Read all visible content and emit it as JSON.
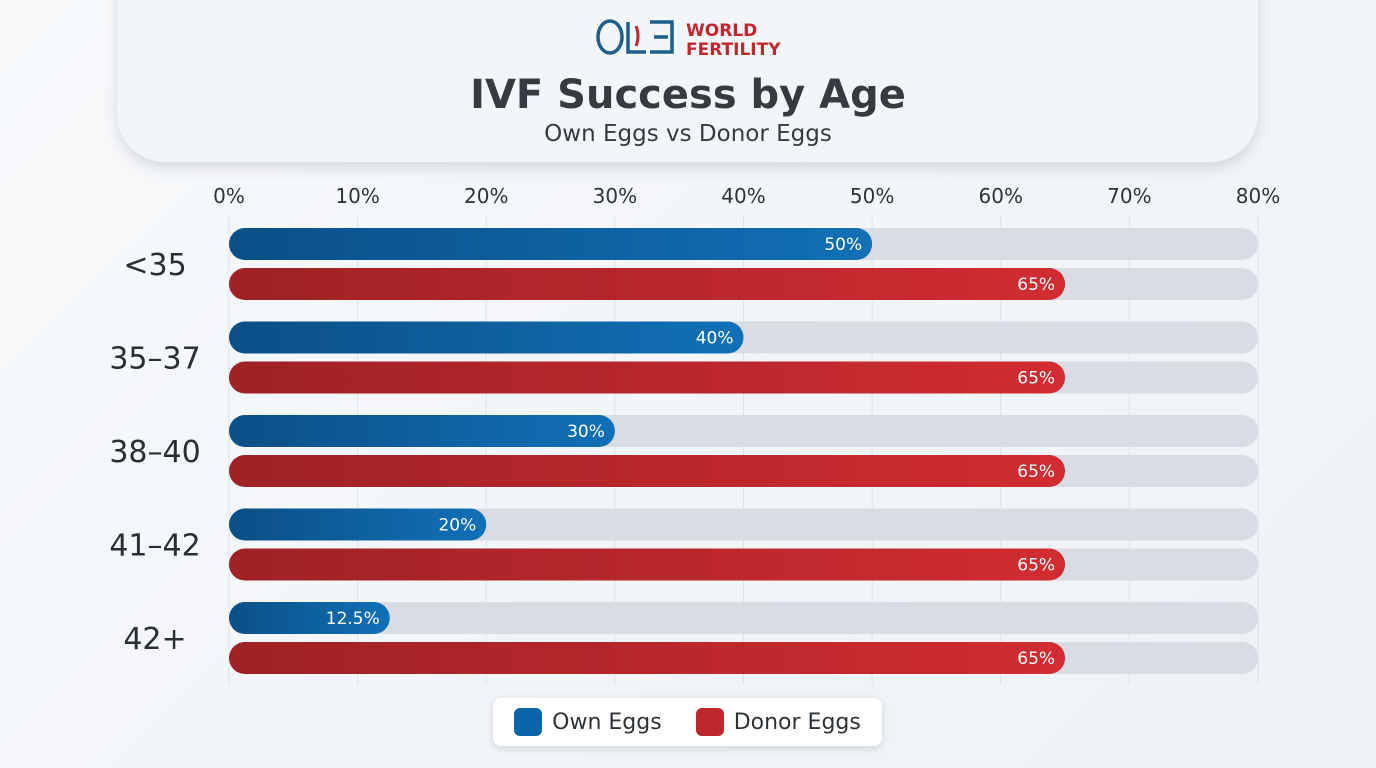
{
  "logo": {
    "text": "ONE WORLD FERTILITY",
    "line1": "WORLD",
    "line2": "FERTILITY"
  },
  "header": {
    "title": "IVF Success by Age",
    "subtitle": "Own Eggs vs Donor Eggs"
  },
  "chart_data": {
    "type": "bar",
    "orientation": "horizontal",
    "title": "IVF Success by Age",
    "subtitle": "Own Eggs vs Donor Eggs",
    "categories": [
      "<35",
      "35–37",
      "38–40",
      "41–42",
      "42+"
    ],
    "series": [
      {
        "name": "Own Eggs",
        "values": [
          50,
          40,
          30,
          20,
          12.5
        ],
        "labels": [
          "50%",
          "40%",
          "30%",
          "20%",
          "12.5%"
        ],
        "color": "#0a64a8"
      },
      {
        "name": "Donor Eggs",
        "values": [
          65,
          65,
          65,
          65,
          65
        ],
        "labels": [
          "65%",
          "65%",
          "65%",
          "65%",
          "65%"
        ],
        "color": "#c0272d"
      }
    ],
    "xlim": [
      0,
      80
    ],
    "xticks": [
      "0%",
      "10%",
      "20%",
      "30%",
      "40%",
      "50%",
      "60%",
      "70%",
      "80%"
    ],
    "axis_position": "top",
    "grid": true,
    "legend": "bottom-center"
  }
}
